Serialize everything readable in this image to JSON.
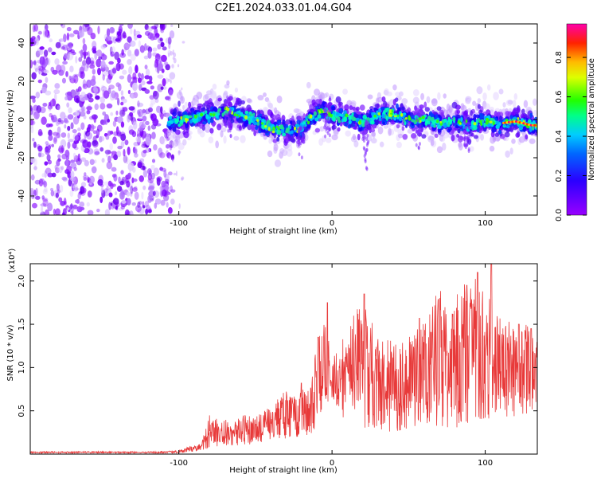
{
  "title": "C2E1.2024.033.01.04.G04",
  "chart_data": [
    {
      "type": "heatmap",
      "xlabel": "Height of straight line (km)",
      "ylabel": "Frequency (Hz)",
      "xlim": [
        -197,
        134
      ],
      "ylim": [
        -50,
        50
      ],
      "xticks": [
        -100,
        0,
        100
      ],
      "yticks": [
        -40,
        -20,
        0,
        20,
        40
      ],
      "colorbar": {
        "label": "Normalized spectral amplitude",
        "range": [
          0.0,
          0.97
        ],
        "ticks": [
          0.0,
          0.2,
          0.4,
          0.6,
          0.8
        ],
        "colormap": "rainbow (violet-blue-cyan-green-yellow-red-magenta)"
      },
      "noise_region_x": [
        -197,
        -107
      ],
      "signal_ridge": {
        "x": [
          -107,
          -95,
          -85,
          -75,
          -68,
          -60,
          -50,
          -40,
          -30,
          -20,
          -15,
          -10,
          -5,
          0,
          10,
          20,
          30,
          40,
          50,
          60,
          70,
          80,
          90,
          100,
          110,
          120,
          130
        ],
        "y": [
          -1,
          0,
          2,
          3,
          5,
          2,
          0,
          -4,
          -6,
          -5,
          0,
          3,
          5,
          2,
          1,
          -2,
          2,
          3,
          0,
          0,
          -2,
          -1,
          -3,
          -1,
          -2,
          -1,
          -3
        ]
      }
    },
    {
      "type": "line",
      "xlabel": "Height of straight line (km)",
      "ylabel": "SNR (10 * v/v)",
      "y_multiplier": "(x10⁴)",
      "xlim": [
        -197,
        134
      ],
      "ylim": [
        0,
        2.2
      ],
      "xticks": [
        -100,
        0,
        100
      ],
      "yticks": [
        0.5,
        1.0,
        1.5,
        2.0
      ],
      "color": "#e83a3a",
      "envelope": {
        "x": [
          -197,
          -120,
          -100,
          -95,
          -90,
          -85,
          -80,
          -70,
          -60,
          -50,
          -45,
          -40,
          -35,
          -30,
          -25,
          -20,
          -15,
          -10,
          -8,
          -5,
          0,
          10,
          20,
          30,
          40,
          50,
          60,
          70,
          80,
          90,
          100,
          110,
          120,
          130,
          134
        ],
        "low": [
          0.01,
          0.01,
          0.01,
          0.02,
          0.03,
          0.04,
          0.07,
          0.1,
          0.1,
          0.12,
          0.12,
          0.12,
          0.18,
          0.18,
          0.2,
          0.2,
          0.22,
          0.3,
          0.45,
          0.6,
          0.6,
          0.35,
          0.3,
          0.28,
          0.25,
          0.3,
          0.35,
          0.3,
          0.3,
          0.3,
          0.4,
          0.45,
          0.4,
          0.5,
          0.5
        ],
        "high": [
          0.03,
          0.03,
          0.04,
          0.08,
          0.1,
          0.13,
          0.45,
          0.4,
          0.45,
          0.45,
          0.5,
          0.55,
          0.65,
          0.75,
          0.7,
          0.75,
          0.8,
          1.3,
          1.4,
          1.6,
          1.1,
          1.45,
          1.85,
          1.4,
          1.3,
          1.35,
          1.6,
          1.9,
          1.8,
          2.1,
          2.05,
          1.6,
          1.5,
          1.5,
          1.3
        ],
        "peaks": [
          [
            -20,
            0.82
          ],
          [
            -9,
            1.35
          ],
          [
            -3,
            1.75
          ],
          [
            21,
            1.85
          ],
          [
            57,
            1.57
          ],
          [
            88,
            1.95
          ],
          [
            95,
            2.1
          ],
          [
            104,
            2.22
          ],
          [
            122,
            1.5
          ],
          [
            130,
            1.45
          ]
        ]
      }
    }
  ]
}
